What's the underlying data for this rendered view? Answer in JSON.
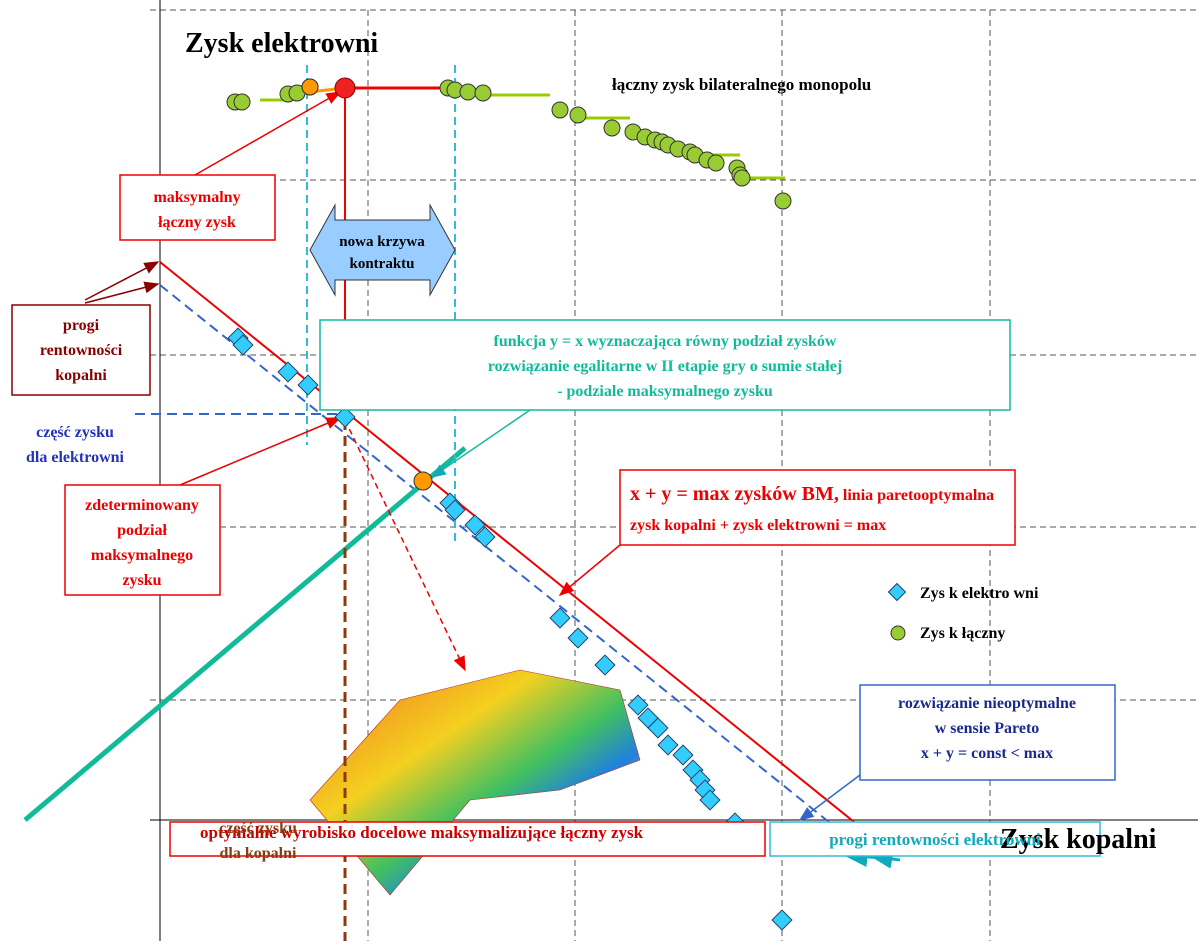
{
  "axes": {
    "y_label": "Zysk elektrowni",
    "x_label": "Zysk kopalni"
  },
  "top_label": "łączny zysk bilateralnego monopolu",
  "boxes": {
    "max_profit": [
      "maksymalny",
      "łączny zysk"
    ],
    "contract_curve": [
      "nowa krzywa",
      "kontraktu"
    ],
    "mine_thresholds": [
      "progi",
      "rentowności",
      "kopalni"
    ],
    "plant_share": [
      "część zysku",
      "dla elektrowni"
    ],
    "egalitarian": [
      "funkcja y = x wyznaczająca równy podział zysków",
      "rozwiązanie egalitarne w II etapie gry o sumie stałej",
      "- podziale maksymalnego zysku"
    ],
    "determined": [
      "zdeterminowany",
      "podział",
      "maksymalnego",
      "zysku"
    ],
    "pareto_head": "x + y = max zysków BM,",
    "pareto_tail": " linia paretooptymalna",
    "pareto_line2": "zysk kopalni + zysk elektrowni = max",
    "non_optimal": [
      "rozwiązanie nieoptymalne",
      "w sensie Pareto",
      "x + y = const < max"
    ],
    "mine_share": [
      "część zysku",
      "dla  kopalni"
    ],
    "optimal_pit": "optymalne wyrobisko docelowe maksymalizujące łączny zysk",
    "plant_thresholds": "progi rentowności elektrowni"
  },
  "legend": [
    "Zys k elektro wni",
    "Zys k łączny"
  ]
}
